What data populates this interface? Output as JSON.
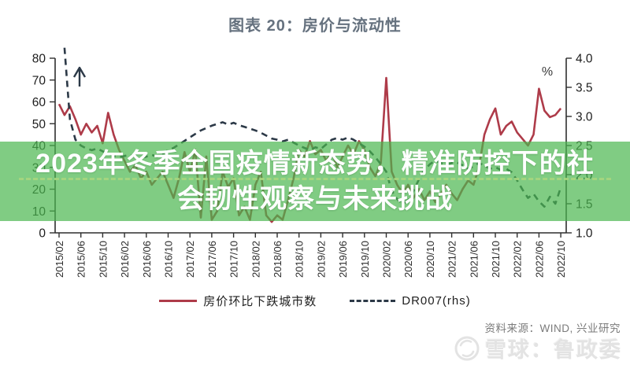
{
  "title": "图表 20：房价与流动性",
  "banner": {
    "line1": "2023年冬季全国疫情新态势，精准防控下的社",
    "line2": "会韧性观察与未来挑战",
    "background_color": "#4ab74e",
    "text_color": "#ffffff"
  },
  "legend": {
    "items": [
      {
        "label": "房价环比下跌城市数",
        "color": "#ae3b49",
        "style": "solid"
      },
      {
        "label": "DR007(rhs)",
        "color": "#2c3947",
        "style": "dashed"
      }
    ]
  },
  "footer": {
    "source": "资料来源：WIND, 兴业研究",
    "watermark": "雪球：鲁政委"
  },
  "chart_data": {
    "type": "line",
    "title": "图表 20：房价与流动性",
    "x_start": "2015/02",
    "x_interval_months": 1,
    "x_tick_labels": [
      "2015/02",
      "2015/06",
      "2015/10",
      "2016/02",
      "2016/06",
      "2016/10",
      "2017/02",
      "2017/06",
      "2017/10",
      "2018/02",
      "2018/06",
      "2018/10",
      "2019/02",
      "2019/06",
      "2019/10",
      "2020/02",
      "2020/06",
      "2020/10",
      "2021/02",
      "2021/06",
      "2021/10",
      "2022/02",
      "2022/06",
      "2022/10"
    ],
    "left_axis": {
      "min": 0,
      "max": 80,
      "tick_step": 10,
      "ticks": [
        "80",
        "70",
        "60",
        "50",
        "40",
        "30",
        "20",
        "10",
        "0"
      ]
    },
    "right_axis": {
      "min": 1.0,
      "max": 4.0,
      "tick_step": 0.5,
      "ticks": [
        "4.0",
        "3.5",
        "3.0",
        "2.5",
        "2.0",
        "1.5",
        "1.0"
      ],
      "unit": "%"
    },
    "grid": false,
    "legend_position": "bottom",
    "annotations": [
      {
        "type": "up-arrow",
        "near": "2015/04",
        "meaning": "DR007 starts above axis maximum",
        "color": "#2c3947"
      }
    ],
    "series": [
      {
        "name": "房价环比下跌城市数",
        "axis": "left",
        "color": "#ae3b49",
        "style": "solid",
        "values": [
          59,
          54,
          58,
          52,
          45,
          50,
          46,
          49,
          41,
          55,
          45,
          38,
          33,
          28,
          31,
          25,
          28,
          22,
          25,
          28,
          22,
          16,
          25,
          37,
          28,
          38,
          7,
          35,
          6,
          10,
          28,
          21,
          25,
          8,
          12,
          6,
          22,
          28,
          8,
          5,
          8,
          6,
          15,
          25,
          38,
          35,
          42,
          36,
          38,
          33,
          37,
          30,
          35,
          40,
          36,
          42,
          38,
          30,
          26,
          32,
          71,
          28,
          22,
          18,
          22,
          16,
          20,
          15,
          19,
          14,
          18,
          22,
          18,
          15,
          20,
          24,
          22,
          30,
          45,
          52,
          57,
          45,
          49,
          51,
          46,
          43,
          40,
          45,
          66,
          56,
          53,
          54,
          57
        ]
      },
      {
        "name": "DR007(rhs)",
        "axis": "right",
        "color": "#2c3947",
        "style": "dashed",
        "values": [
          null,
          4.18,
          2.95,
          2.6,
          2.5,
          2.45,
          2.42,
          2.45,
          2.4,
          2.36,
          2.32,
          2.3,
          2.32,
          2.34,
          2.31,
          2.29,
          2.31,
          2.34,
          2.31,
          2.36,
          2.42,
          2.46,
          2.52,
          2.58,
          2.64,
          2.7,
          2.76,
          2.8,
          2.84,
          2.87,
          2.9,
          2.86,
          2.89,
          2.85,
          2.82,
          2.79,
          2.76,
          2.72,
          2.67,
          2.62,
          2.6,
          2.57,
          2.6,
          2.55,
          2.5,
          2.46,
          2.42,
          2.47,
          2.44,
          2.52,
          2.6,
          2.63,
          2.6,
          2.64,
          2.6,
          2.54,
          2.48,
          2.4,
          2.3,
          2.18,
          2.05,
          1.72,
          1.58,
          1.5,
          1.56,
          1.72,
          1.92,
          2.08,
          2.18,
          2.24,
          2.2,
          2.16,
          2.2,
          2.21,
          2.16,
          2.1,
          2.14,
          2.2,
          2.16,
          2.1,
          2.13,
          2.08,
          2.1,
          2.04,
          1.9,
          1.74,
          1.6,
          1.67,
          1.54,
          1.45,
          1.62,
          1.5,
          1.78
        ]
      }
    ]
  }
}
